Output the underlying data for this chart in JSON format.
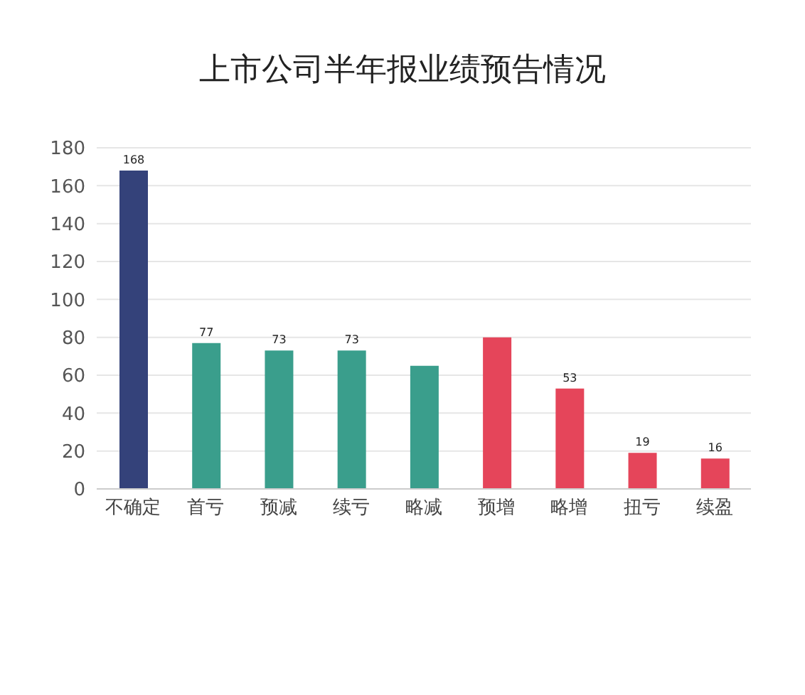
{
  "chart_data": {
    "type": "bar",
    "title": "上市公司半年报业绩预告情况",
    "categories": [
      "不确定",
      "首亏",
      "预减",
      "续亏",
      "略减",
      "预增",
      "略增",
      "扭亏",
      "续盈"
    ],
    "values": [
      168,
      77,
      73,
      73,
      65,
      80,
      53,
      19,
      16
    ],
    "colors": [
      "#34427a",
      "#3a9e8c",
      "#3a9e8c",
      "#3a9e8c",
      "#3a9e8c",
      "#e5455a",
      "#e5455a",
      "#e5455a",
      "#e5455a"
    ],
    "value_labels": [
      "168",
      "77",
      "73",
      "73",
      null,
      null,
      "53",
      "19",
      "16"
    ],
    "ylim": [
      0,
      180
    ],
    "yticks": [
      0,
      20,
      40,
      60,
      80,
      100,
      120,
      140,
      160,
      180
    ],
    "grid": "y"
  }
}
